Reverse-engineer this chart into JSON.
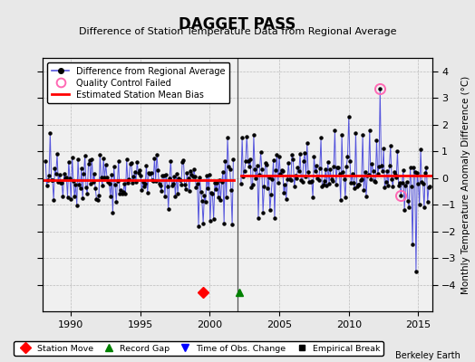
{
  "title": "DAGGET PASS",
  "subtitle": "Difference of Station Temperature Data from Regional Average",
  "ylabel": "Monthly Temperature Anomaly Difference (°C)",
  "xlim": [
    1988.0,
    2016.0
  ],
  "ylim": [
    -5.0,
    4.5
  ],
  "yticks": [
    -4,
    -3,
    -2,
    -1,
    0,
    1,
    2,
    3,
    4
  ],
  "xticks": [
    1990,
    1995,
    2000,
    2005,
    2010,
    2015
  ],
  "bias_y1": -0.08,
  "bias_y2": 0.08,
  "bias_x1_start": 1988.0,
  "bias_x1_end": 2001.75,
  "bias_x2_start": 2002.25,
  "bias_x2_end": 2016.0,
  "gap_x": 2002.0,
  "station_move_x": 1999.5,
  "record_gap_x": 2002.1,
  "watermark": "Berkeley Earth",
  "bg_color": "#e8e8e8",
  "plot_bg_color": "#f0f0f0",
  "line_color": "#5555dd",
  "bias_color": "red",
  "qc_fail_color": "#ff69b4",
  "qc_fail_points": [
    [
      2012.25,
      3.35
    ],
    [
      2013.75,
      -0.65
    ]
  ],
  "vertical_gap_x": 2002.0,
  "title_fontsize": 12,
  "subtitle_fontsize": 8
}
